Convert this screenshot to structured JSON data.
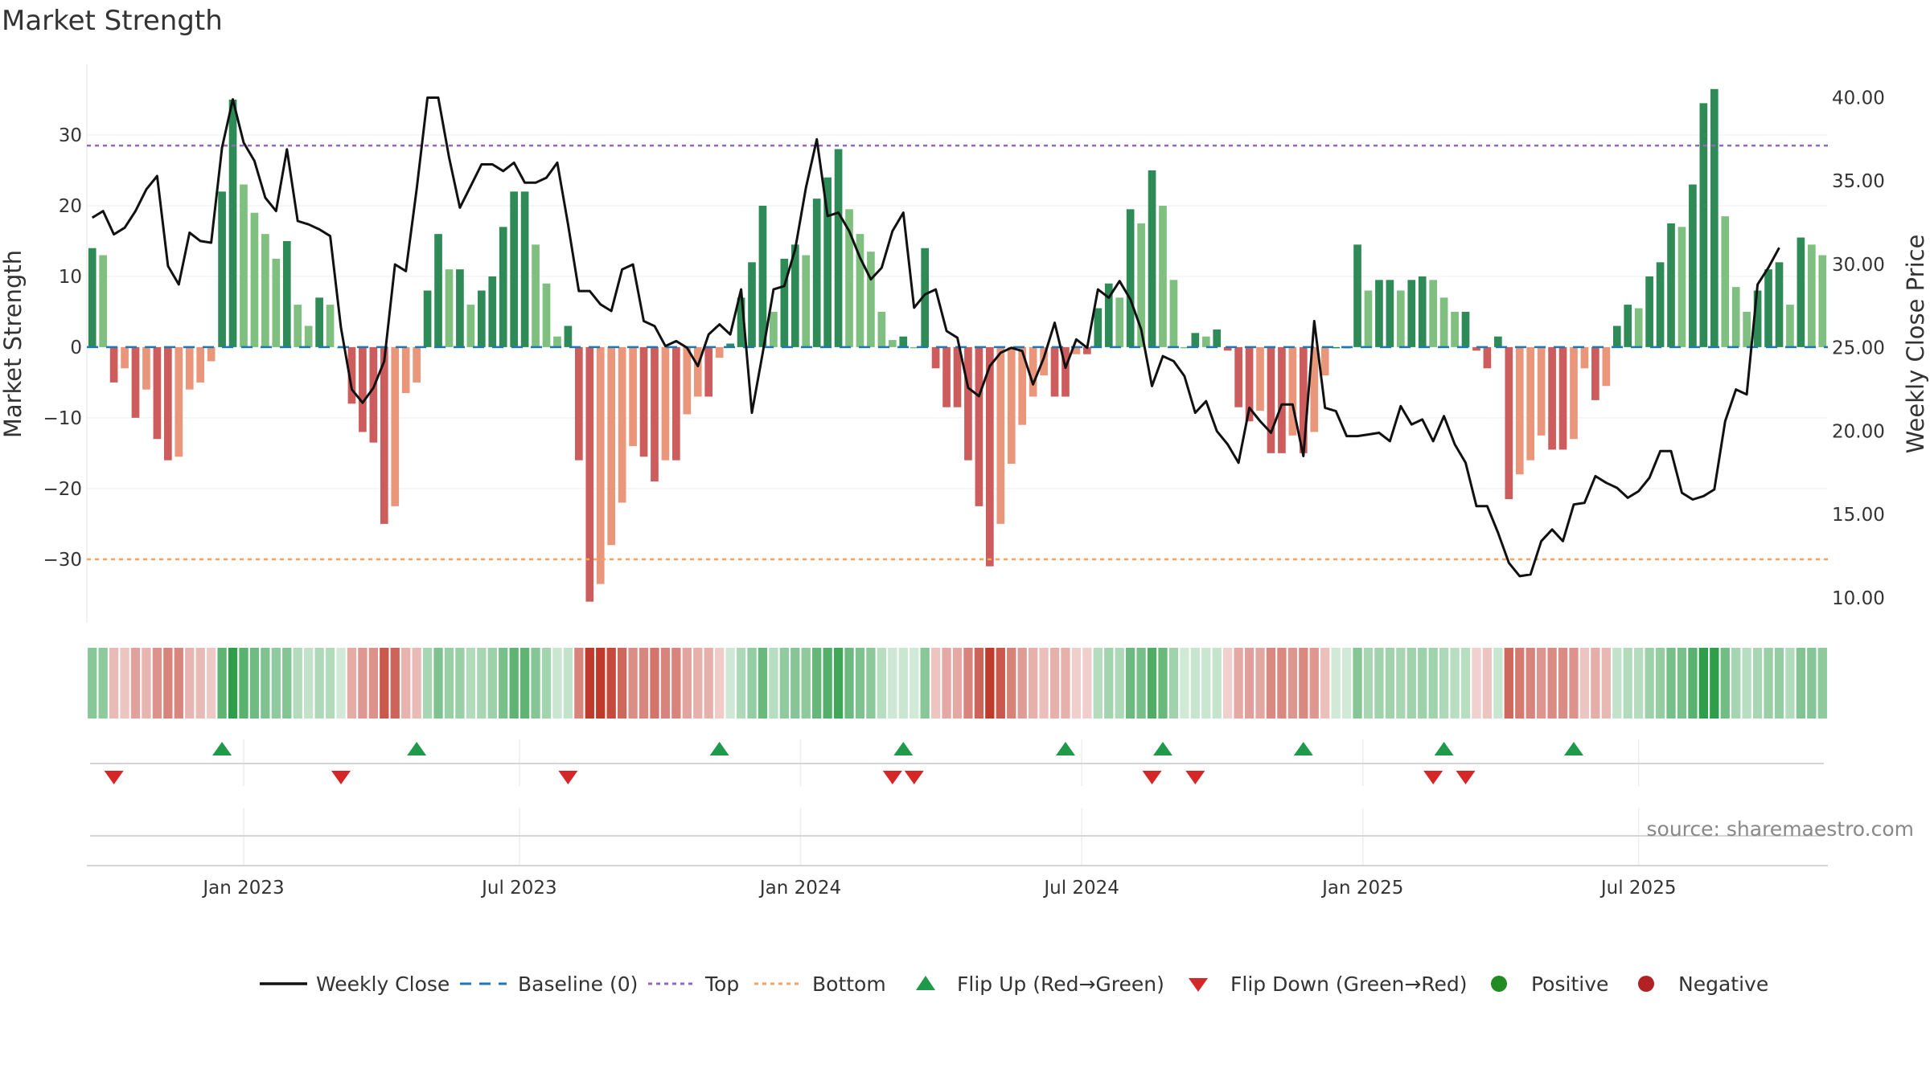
{
  "title": "Market Strength",
  "source": "source: sharemaestro.com",
  "colors": {
    "green_dark": "#2e8b57",
    "green_light": "#7fbf7f",
    "red_dark": "#cd5c5c",
    "red_light": "#e9967a",
    "top_line": "#9467bd",
    "bottom_line": "#f4a460",
    "baseline": "#1f77b4",
    "close_line": "#111111",
    "flip_up": "#1f9a4a",
    "flip_down": "#d62728",
    "positive": "#228b22",
    "negative": "#b22222"
  },
  "chart_data": {
    "type": "bar+line",
    "title": "Market Strength",
    "ylabel": "Market Strength",
    "y2label": "Weekly Close Price",
    "ylim": [
      -39,
      40
    ],
    "y2lim": [
      8.5,
      42
    ],
    "yticks": [
      "30",
      "20",
      "10",
      "0",
      "−10",
      "−20",
      "−30"
    ],
    "y2ticks": [
      "40.00",
      "35.00",
      "30.00",
      "25.00",
      "20.00",
      "15.00",
      "10.00"
    ],
    "top": 28.5,
    "bottom": -30,
    "baseline": 0,
    "x_labels": [
      "Jan 2023",
      "Jul 2023",
      "Jan 2024",
      "Jul 2024",
      "Jan 2025",
      "Jul 2025"
    ],
    "x_label_weeks": [
      14.5,
      40,
      66,
      92,
      118,
      143.5
    ],
    "strength": [
      14,
      13,
      -5,
      -3,
      -10,
      -6,
      -13,
      -16,
      -15.5,
      -6,
      -5,
      -2,
      22,
      35,
      23,
      19,
      16,
      12.5,
      15,
      6,
      3,
      7,
      6,
      0,
      -8,
      -12,
      -13.5,
      -25,
      -22.5,
      -6.5,
      -5,
      8,
      16,
      11,
      11,
      6,
      8,
      10,
      17,
      22,
      22,
      14.5,
      9,
      1.5,
      3,
      -16,
      -36,
      -33.5,
      -28,
      -22,
      -14,
      -15.5,
      -19,
      -16,
      -16,
      -9.5,
      -7,
      -7,
      -1.5,
      0.5,
      7,
      12,
      20,
      5,
      12.5,
      14.5,
      13,
      21,
      24,
      28,
      19.5,
      16,
      13.5,
      5,
      1,
      1.5,
      0,
      14,
      -3,
      -8.5,
      -8.5,
      -16,
      -22.5,
      -31,
      -25,
      -16.5,
      -11,
      -7,
      -4,
      -7,
      -7,
      -1,
      -1,
      5.5,
      9,
      7,
      19.5,
      17.5,
      25,
      20,
      9.5,
      0,
      2,
      1.5,
      2.5,
      -0.5,
      -8.5,
      -10.5,
      -9,
      -15,
      -15,
      -12.5,
      -15,
      -12,
      -4,
      0,
      0,
      14.5,
      8,
      9.5,
      9.5,
      8,
      9.5,
      10,
      9.5,
      7,
      5,
      5,
      -0.5,
      -3,
      1.5,
      -21.5,
      -18,
      -16,
      -12.5,
      -14.5,
      -14.5,
      -13,
      -3,
      -7.5,
      -5.5,
      3,
      6,
      5.5,
      10,
      12,
      17.5,
      17,
      23,
      34.5,
      36.5,
      18.5,
      8.5,
      5,
      8,
      11,
      12,
      6,
      15.5,
      14.5,
      13
    ],
    "weekly_close": [
      32.8,
      33.2,
      31.8,
      32.2,
      33.2,
      34.5,
      35.3,
      29.9,
      28.8,
      31.9,
      31.4,
      31.3,
      37.0,
      39.9,
      37.3,
      36.2,
      34,
      33.2,
      36.9,
      32.6,
      32.4,
      32.1,
      31.7,
      26.2,
      22.5,
      21.7,
      22.6,
      24.2,
      30.0,
      29.6,
      34.5,
      40.0,
      40.0,
      36.4,
      33.4,
      34.7,
      36.0,
      36.0,
      35.6,
      36.1,
      34.9,
      34.9,
      35.2,
      36.1,
      32.4,
      28.4,
      28.4,
      27.6,
      27.2,
      29.7,
      30.0,
      26.6,
      26.3,
      25.1,
      25.4,
      25.0,
      23.9,
      25.8,
      26.4,
      25.8,
      28.5,
      21.1,
      24.7,
      28.5,
      28.7,
      30.9,
      34.6,
      37.5,
      32.9,
      33.1,
      32.0,
      30.4,
      29.1,
      29.8,
      32.0,
      33.1,
      27.4,
      28.2,
      28.5,
      26.0,
      25.6,
      22.6,
      22.1,
      23.9,
      24.7,
      25.0,
      24.8,
      22.8,
      24.4,
      26.5,
      23.8,
      25.5,
      25.0,
      28.5,
      28.0,
      29.0,
      27.9,
      26.1,
      22.7,
      24.5,
      24.2,
      23.3,
      21.1,
      21.8,
      20.0,
      19.2,
      18.1,
      21.4,
      20.6,
      19.9,
      21.6,
      21.6,
      18.5,
      26.6,
      21.4,
      21.2,
      19.7,
      19.7,
      19.8,
      19.9,
      19.4,
      21.5,
      20.4,
      20.7,
      19.4,
      20.9,
      19.2,
      18.1,
      15.5,
      15.5,
      13.9,
      12.1,
      11.3,
      11.4,
      13.4,
      14.1,
      13.4,
      15.6,
      15.7,
      17.3,
      16.9,
      16.6,
      16.0,
      16.4,
      17.2,
      18.8,
      18.8,
      16.3,
      15.9,
      16.1,
      16.5,
      20.6,
      22.5,
      22.2,
      28.8,
      29.8,
      31.0
    ]
  },
  "flips_up": [
    12,
    30,
    58,
    75,
    90,
    99,
    112,
    125,
    137
  ],
  "flips_down": [
    2,
    23,
    44,
    74,
    76,
    98,
    102,
    124,
    127
  ],
  "legend": {
    "weekly_close": "Weekly Close",
    "baseline": "Baseline (0)",
    "top": "Top",
    "bottom": "Bottom",
    "flip_up": "Flip Up (Red→Green)",
    "flip_down": "Flip Down (Green→Red)",
    "positive": "Positive",
    "negative": "Negative"
  }
}
